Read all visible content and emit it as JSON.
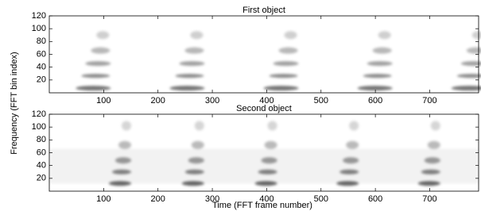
{
  "chart_data": [
    {
      "type": "heatmap",
      "title": "First object",
      "xlim": [
        0,
        790
      ],
      "xticks": [
        100,
        200,
        300,
        400,
        500,
        600,
        700
      ],
      "ylim": [
        0,
        120
      ],
      "yticks": [
        20,
        40,
        60,
        80,
        100,
        120
      ]
    },
    {
      "type": "heatmap",
      "title": "Second object",
      "xlim": [
        0,
        790
      ],
      "xticks": [
        100,
        200,
        300,
        400,
        500,
        600,
        700
      ],
      "ylim": [
        0,
        120
      ],
      "yticks": [
        20,
        40,
        60,
        80,
        100,
        120
      ]
    }
  ],
  "x_label": "Time (FFT frame number)",
  "y_label": "Frequency (FFT bin index)"
}
